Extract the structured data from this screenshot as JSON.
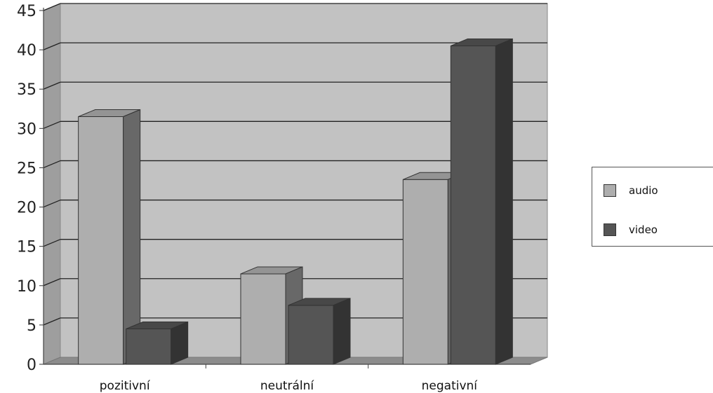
{
  "chart_data": {
    "type": "bar",
    "title": "",
    "xlabel": "",
    "ylabel": "",
    "categories": [
      "pozitivní",
      "neutrální",
      "negativní"
    ],
    "series": [
      {
        "name": "audio",
        "values": [
          31.5,
          11.5,
          23.5
        ],
        "color": "#aeaeae"
      },
      {
        "name": "video",
        "values": [
          4.5,
          7.5,
          40.5
        ],
        "color": "#555555"
      }
    ],
    "ylim": [
      0,
      45
    ],
    "yticks": [
      "0",
      "5",
      "10",
      "15",
      "20",
      "25",
      "30",
      "35",
      "40",
      "45"
    ],
    "grid": true,
    "style": "3d",
    "legend_position": "right"
  }
}
